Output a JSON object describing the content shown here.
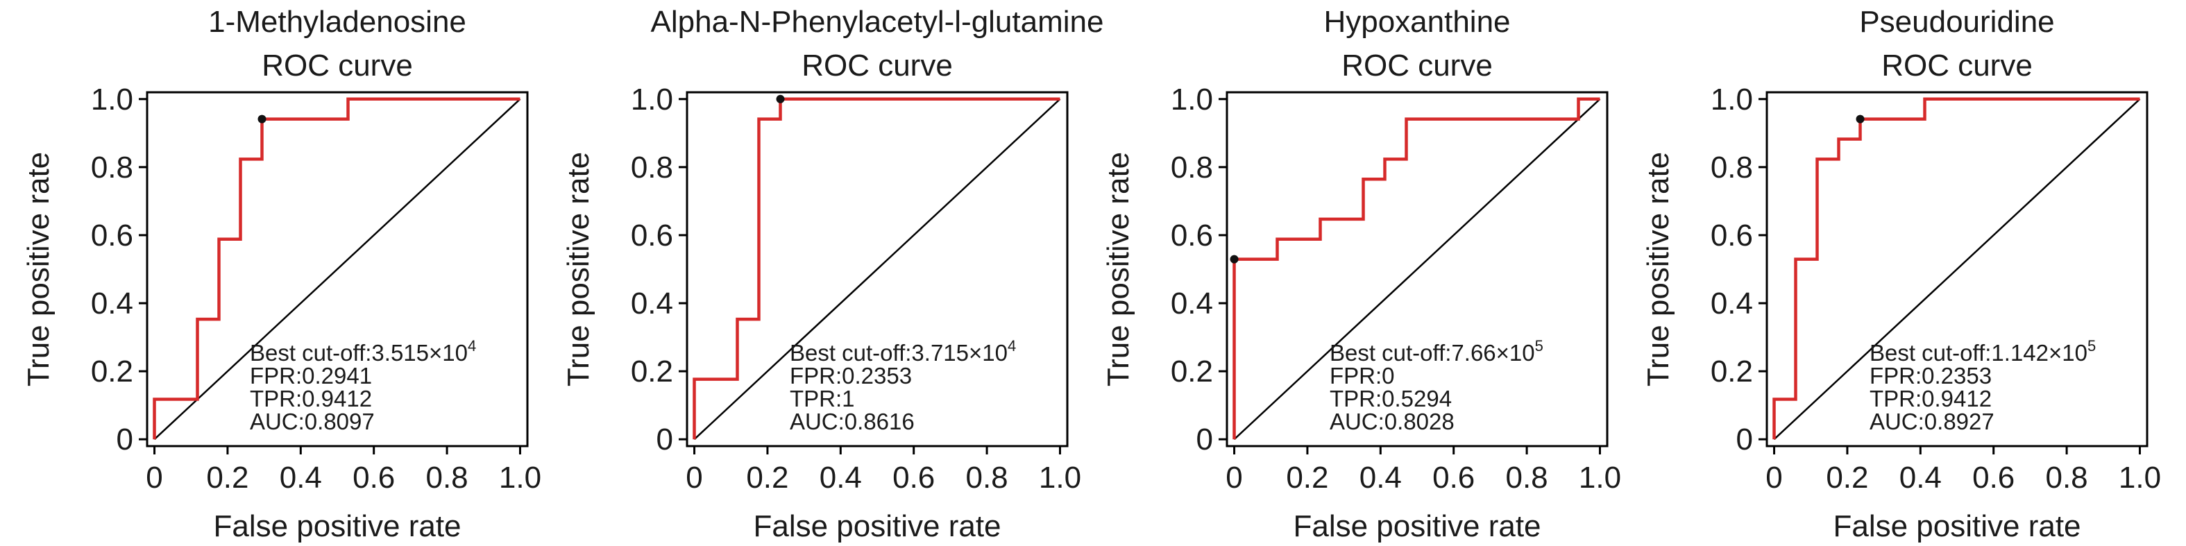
{
  "chart_data": [
    {
      "type": "line",
      "title": [
        "1-Methyladenosine",
        "ROC curve"
      ],
      "xlabel": "False positive rate",
      "ylabel": "True positive rate",
      "xlim": [
        0,
        1
      ],
      "ylim": [
        0,
        1
      ],
      "x_ticks": [
        "0",
        "0.2",
        "0.4",
        "0.6",
        "0.8",
        "1.0"
      ],
      "y_ticks": [
        "0",
        "0.2",
        "0.4",
        "0.6",
        "0.8",
        "1.0"
      ],
      "grid": false,
      "line_color": "#d62a2a",
      "series": [
        {
          "x": [
            0,
            0,
            0.1176,
            0.1176,
            0.1765,
            0.1765,
            0.2353,
            0.2353,
            0.2941,
            0.2941,
            0.5294,
            0.5294,
            1.0
          ],
          "y": [
            0,
            0.1176,
            0.1176,
            0.3529,
            0.3529,
            0.5882,
            0.5882,
            0.8235,
            0.8235,
            0.9412,
            0.9412,
            1.0,
            1.0
          ]
        }
      ],
      "best_point": {
        "x": 0.2941,
        "y": 0.9412
      },
      "annotation": {
        "cutoff_prefix": "Best cut-off:3.515×10",
        "cutoff_exp": "4",
        "lines": [
          "FPR:0.2941",
          "TPR:0.9412",
          "AUC:0.8097"
        ]
      }
    },
    {
      "type": "line",
      "title": [
        "Alpha-N-Phenylacetyl-l-glutamine",
        "ROC curve"
      ],
      "xlabel": "False positive rate",
      "ylabel": "True positive rate",
      "xlim": [
        0,
        1
      ],
      "ylim": [
        0,
        1
      ],
      "x_ticks": [
        "0",
        "0.2",
        "0.4",
        "0.6",
        "0.8",
        "1.0"
      ],
      "y_ticks": [
        "0",
        "0.2",
        "0.4",
        "0.6",
        "0.8",
        "1.0"
      ],
      "grid": false,
      "line_color": "#d62a2a",
      "series": [
        {
          "x": [
            0,
            0,
            0.1176,
            0.1176,
            0.1765,
            0.1765,
            0.2353,
            0.2353,
            1.0
          ],
          "y": [
            0,
            0.1765,
            0.1765,
            0.3529,
            0.3529,
            0.9412,
            0.9412,
            1.0,
            1.0
          ]
        }
      ],
      "best_point": {
        "x": 0.2353,
        "y": 1.0
      },
      "annotation": {
        "cutoff_prefix": "Best cut-off:3.715×10",
        "cutoff_exp": "4",
        "lines": [
          "FPR:0.2353",
          "TPR:1",
          "AUC:0.8616"
        ]
      }
    },
    {
      "type": "line",
      "title": [
        "Hypoxanthine",
        "ROC curve"
      ],
      "xlabel": "False positive rate",
      "ylabel": "True positive rate",
      "xlim": [
        0,
        1
      ],
      "ylim": [
        0,
        1
      ],
      "x_ticks": [
        "0",
        "0.2",
        "0.4",
        "0.6",
        "0.8",
        "1.0"
      ],
      "y_ticks": [
        "0",
        "0.2",
        "0.4",
        "0.6",
        "0.8",
        "1.0"
      ],
      "grid": false,
      "line_color": "#d62a2a",
      "series": [
        {
          "x": [
            0,
            0,
            0.1176,
            0.1176,
            0.2353,
            0.2353,
            0.3529,
            0.3529,
            0.4118,
            0.4118,
            0.4706,
            0.4706,
            0.9412,
            0.9412,
            1.0
          ],
          "y": [
            0,
            0.5294,
            0.5294,
            0.5882,
            0.5882,
            0.6471,
            0.6471,
            0.7647,
            0.7647,
            0.8235,
            0.8235,
            0.9412,
            0.9412,
            1.0,
            1.0
          ]
        }
      ],
      "best_point": {
        "x": 0,
        "y": 0.5294
      },
      "annotation": {
        "cutoff_prefix": "Best cut-off:7.66×10",
        "cutoff_exp": "5",
        "lines": [
          "FPR:0",
          "TPR:0.5294",
          "AUC:0.8028"
        ]
      }
    },
    {
      "type": "line",
      "title": [
        "Pseudouridine",
        "ROC curve"
      ],
      "xlabel": "False positive rate",
      "ylabel": "True positive rate",
      "xlim": [
        0,
        1
      ],
      "ylim": [
        0,
        1
      ],
      "x_ticks": [
        "0",
        "0.2",
        "0.4",
        "0.6",
        "0.8",
        "1.0"
      ],
      "y_ticks": [
        "0",
        "0.2",
        "0.4",
        "0.6",
        "0.8",
        "1.0"
      ],
      "grid": false,
      "line_color": "#d62a2a",
      "series": [
        {
          "x": [
            0,
            0,
            0.0588,
            0.0588,
            0.1176,
            0.1176,
            0.1765,
            0.1765,
            0.2353,
            0.2353,
            0.4118,
            0.4118,
            1.0
          ],
          "y": [
            0,
            0.1176,
            0.1176,
            0.5294,
            0.5294,
            0.8235,
            0.8235,
            0.8824,
            0.8824,
            0.9412,
            0.9412,
            1.0,
            1.0
          ]
        }
      ],
      "best_point": {
        "x": 0.2353,
        "y": 0.9412
      },
      "annotation": {
        "cutoff_prefix": "Best cut-off:1.142×10",
        "cutoff_exp": "5",
        "lines": [
          "FPR:0.2353",
          "TPR:0.9412",
          "AUC:0.8927"
        ]
      }
    }
  ]
}
